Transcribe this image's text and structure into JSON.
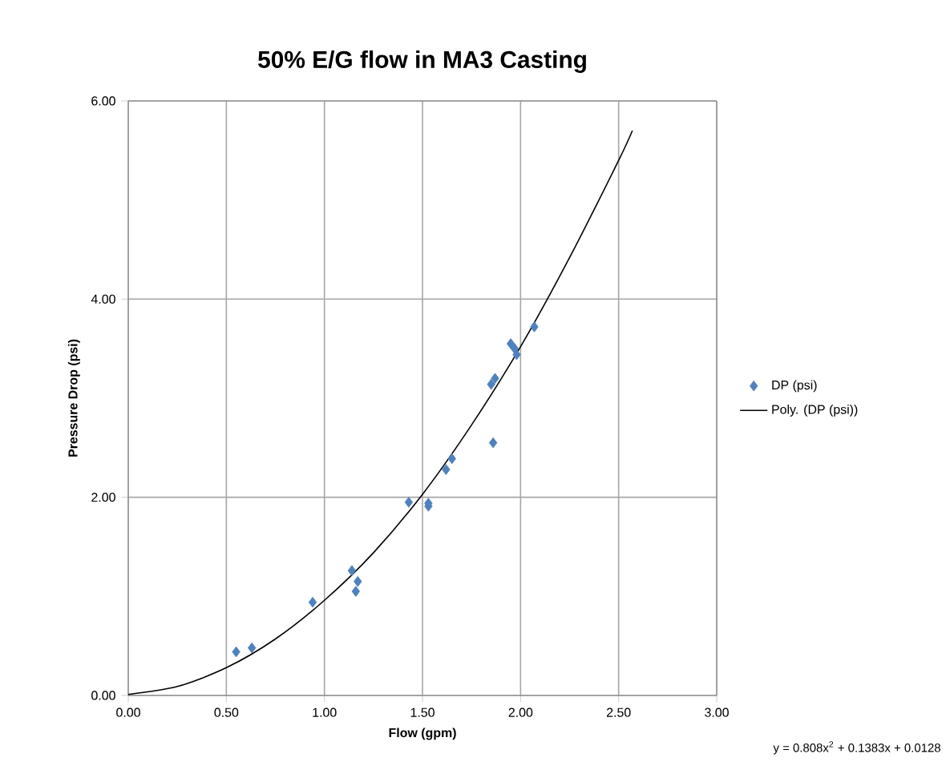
{
  "chart_data": {
    "type": "scatter",
    "title": "50% E/G flow in MA3 Casting",
    "xlabel": "Flow (gpm)",
    "ylabel": "Pressure Drop (psi)",
    "xlim": [
      0,
      3
    ],
    "ylim": [
      0,
      6
    ],
    "xticks": [
      {
        "value": 0,
        "label": "0.00"
      },
      {
        "value": 0.5,
        "label": "0.50"
      },
      {
        "value": 1,
        "label": "1.00"
      },
      {
        "value": 1.5,
        "label": "1.50"
      },
      {
        "value": 2,
        "label": "2.00"
      },
      {
        "value": 2.5,
        "label": "2.50"
      },
      {
        "value": 3,
        "label": "3.00"
      }
    ],
    "yticks": [
      {
        "value": 0,
        "label": "0.00"
      },
      {
        "value": 2,
        "label": "2.00"
      },
      {
        "value": 4,
        "label": "4.00"
      },
      {
        "value": 6,
        "label": "6.00"
      }
    ],
    "grid": true,
    "legend": "right",
    "annotations": [
      "y = 0.808x$^{2}$ + 0.1383x + 0.0128"
    ],
    "series": [
      {
        "name": "DP (psi)",
        "marker": "diamond",
        "color": "#4f81bd",
        "x": [
          0.55,
          0.63,
          0.94,
          1.14,
          1.17,
          1.16,
          1.43,
          1.53,
          1.53,
          1.62,
          1.64,
          1.65,
          1.86,
          1.85,
          1.87,
          1.95,
          1.97,
          1.98,
          2.07
        ],
        "values": [
          0.44,
          0.48,
          0.94,
          1.26,
          1.15,
          1.05,
          1.95,
          1.94,
          1.91,
          2.28,
          null,
          2.39,
          2.55,
          3.14,
          3.2,
          3.55,
          3.5,
          3.44,
          3.72
        ]
      },
      {
        "name": "Poly. (DP (psi))",
        "type": "line",
        "marker": "none",
        "color": "#000000",
        "x": [
          0,
          0.25,
          0.5,
          0.75,
          1,
          1.25,
          1.5,
          1.75,
          2,
          2.25,
          2.5,
          2.57
        ],
        "values": [
          0.01,
          0.09,
          0.28,
          0.57,
          0.96,
          1.44,
          2.03,
          2.73,
          3.52,
          4.42,
          5.4,
          5.7
        ]
      }
    ]
  }
}
